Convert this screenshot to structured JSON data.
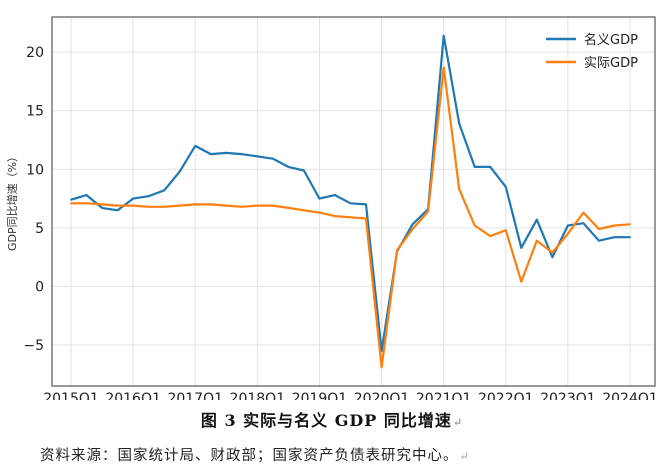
{
  "chart_data": {
    "type": "line",
    "xlabel": "",
    "ylabel": "GDP同比增速（%）",
    "ylim": [
      -8.5,
      23
    ],
    "yticks": [
      -5,
      0,
      5,
      10,
      15,
      20
    ],
    "xticks": [
      "2015Q1",
      "2016Q1",
      "2017Q1",
      "2018Q1",
      "2019Q1",
      "2020Q1",
      "2021Q1",
      "2022Q1",
      "2023Q1",
      "2024Q1"
    ],
    "grid": true,
    "legend_position": "top-right",
    "x": [
      "2015Q1",
      "2015Q2",
      "2015Q3",
      "2015Q4",
      "2016Q1",
      "2016Q2",
      "2016Q3",
      "2016Q4",
      "2017Q1",
      "2017Q2",
      "2017Q3",
      "2017Q4",
      "2018Q1",
      "2018Q2",
      "2018Q3",
      "2018Q4",
      "2019Q1",
      "2019Q2",
      "2019Q3",
      "2019Q4",
      "2020Q1",
      "2020Q2",
      "2020Q3",
      "2020Q4",
      "2021Q1",
      "2021Q2",
      "2021Q3",
      "2021Q4",
      "2022Q1",
      "2022Q2",
      "2022Q3",
      "2022Q4",
      "2023Q1",
      "2023Q2",
      "2023Q3",
      "2023Q4",
      "2024Q1"
    ],
    "series": [
      {
        "name": "名义GDP",
        "color": "#1f77b4",
        "values": [
          7.4,
          7.8,
          6.7,
          6.5,
          7.5,
          7.7,
          8.2,
          9.8,
          12.0,
          11.3,
          11.4,
          11.3,
          11.1,
          10.9,
          10.2,
          9.9,
          7.5,
          7.8,
          7.1,
          7.0,
          -5.5,
          3.0,
          5.3,
          6.6,
          21.4,
          13.9,
          10.2,
          10.2,
          8.5,
          3.3,
          5.7,
          2.5,
          5.2,
          5.4,
          3.9,
          4.2,
          4.2
        ]
      },
      {
        "name": "实际GDP",
        "color": "#ff7f0e",
        "values": [
          7.1,
          7.1,
          7.0,
          6.9,
          6.9,
          6.8,
          6.8,
          6.9,
          7.0,
          7.0,
          6.9,
          6.8,
          6.9,
          6.9,
          6.7,
          6.5,
          6.3,
          6.0,
          5.9,
          5.8,
          -6.9,
          3.1,
          4.9,
          6.4,
          18.7,
          8.3,
          5.2,
          4.3,
          4.8,
          0.4,
          3.9,
          2.9,
          4.5,
          6.3,
          4.9,
          5.2,
          5.3
        ]
      }
    ]
  },
  "caption": "图 3 实际与名义 GDP 同比增速",
  "source": "资料来源：国家统计局、财政部；国家资产负债表研究中心。"
}
